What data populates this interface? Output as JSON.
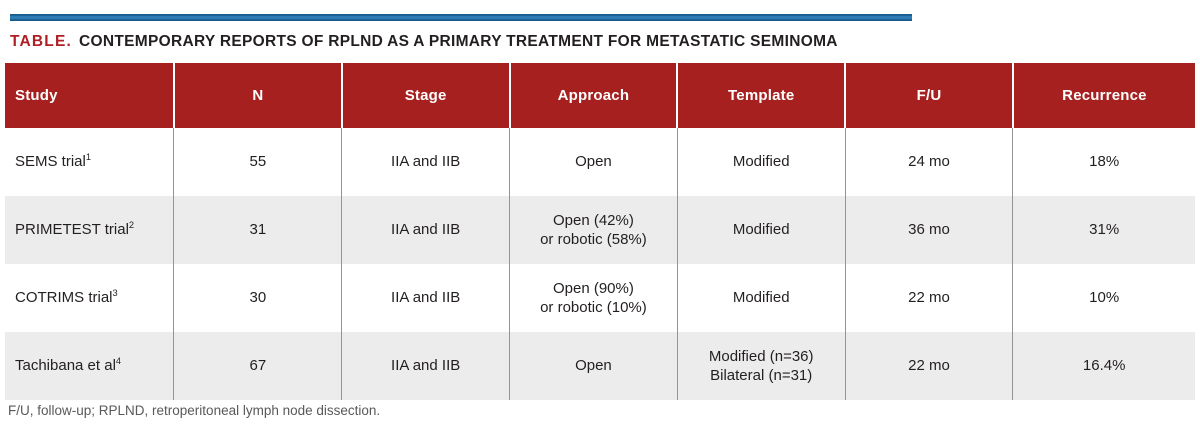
{
  "title": {
    "label": "TABLE.",
    "text": "CONTEMPORARY REPORTS OF RPLND AS A PRIMARY TREATMENT FOR METASTATIC SEMINOMA"
  },
  "table": {
    "columns": [
      {
        "key": "study",
        "label": "Study"
      },
      {
        "key": "n",
        "label": "N"
      },
      {
        "key": "stage",
        "label": "Stage"
      },
      {
        "key": "approach",
        "label": "Approach"
      },
      {
        "key": "template",
        "label": "Template"
      },
      {
        "key": "fu",
        "label": "F/U"
      },
      {
        "key": "recurrence",
        "label": "Recurrence"
      }
    ],
    "rows": [
      {
        "study": "SEMS trial",
        "ref": "1",
        "n": "55",
        "stage": "IIA and IIB",
        "approach": [
          "Open"
        ],
        "template": [
          "Modified"
        ],
        "fu": "24 mo",
        "recurrence": "18%"
      },
      {
        "study": "PRIMETEST trial",
        "ref": "2",
        "n": "31",
        "stage": "IIA and IIB",
        "approach": [
          "Open (42%)",
          "or robotic (58%)"
        ],
        "template": [
          "Modified"
        ],
        "fu": "36 mo",
        "recurrence": "31%"
      },
      {
        "study": "COTRIMS trial",
        "ref": "3",
        "n": "30",
        "stage": "IIA and IIB",
        "approach": [
          "Open (90%)",
          "or robotic (10%)"
        ],
        "template": [
          "Modified"
        ],
        "fu": "22 mo",
        "recurrence": "10%"
      },
      {
        "study": "Tachibana et al",
        "ref": "4",
        "n": "67",
        "stage": "IIA and IIB",
        "approach": [
          "Open"
        ],
        "template": [
          "Modified (n=36)",
          "Bilateral (n=31)"
        ],
        "fu": "22 mo",
        "recurrence": "16.4%"
      }
    ]
  },
  "footnote": "F/U, follow-up; RPLND, retroperitoneal lymph node dissection.",
  "colors": {
    "header_red": "#a6201f",
    "accent_red": "#b01e24",
    "bar_blue": "#2e7cb3",
    "bar_blue_dark": "#1a5a8a",
    "row_alt_gray": "#ececec",
    "border_gray": "#949494",
    "text_dark": "#231f20",
    "footnote_gray": "#58595b"
  }
}
